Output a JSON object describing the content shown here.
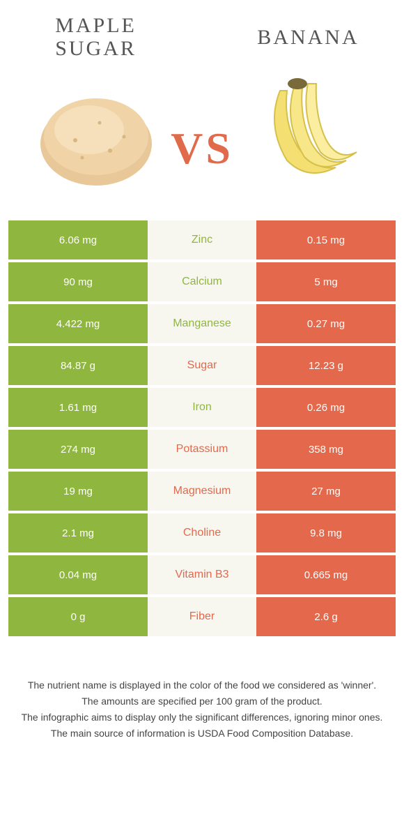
{
  "colors": {
    "left": "#8fb63f",
    "right": "#e4684b",
    "mid_bg": "#f7f7f0",
    "vs": "#e06a4a"
  },
  "foods": {
    "left": {
      "name": "Maple sugar"
    },
    "right": {
      "name": "Banana"
    }
  },
  "vs_label": "VS",
  "rows": [
    {
      "nutrient": "Zinc",
      "left": "6.06 mg",
      "right": "0.15 mg",
      "winner": "left"
    },
    {
      "nutrient": "Calcium",
      "left": "90 mg",
      "right": "5 mg",
      "winner": "left"
    },
    {
      "nutrient": "Manganese",
      "left": "4.422 mg",
      "right": "0.27 mg",
      "winner": "left"
    },
    {
      "nutrient": "Sugar",
      "left": "84.87 g",
      "right": "12.23 g",
      "winner": "right"
    },
    {
      "nutrient": "Iron",
      "left": "1.61 mg",
      "right": "0.26 mg",
      "winner": "left"
    },
    {
      "nutrient": "Potassium",
      "left": "274 mg",
      "right": "358 mg",
      "winner": "right"
    },
    {
      "nutrient": "Magnesium",
      "left": "19 mg",
      "right": "27 mg",
      "winner": "right"
    },
    {
      "nutrient": "Choline",
      "left": "2.1 mg",
      "right": "9.8 mg",
      "winner": "right"
    },
    {
      "nutrient": "Vitamin B3",
      "left": "0.04 mg",
      "right": "0.665 mg",
      "winner": "right"
    },
    {
      "nutrient": "Fiber",
      "left": "0 g",
      "right": "2.6 g",
      "winner": "right"
    }
  ],
  "footer": [
    "The nutrient name is displayed in the color of the food we considered as 'winner'.",
    "The amounts are specified per 100 gram of the product.",
    "The infographic aims to display only the significant differences, ignoring minor ones.",
    "The main source of information is USDA Food Composition Database."
  ]
}
